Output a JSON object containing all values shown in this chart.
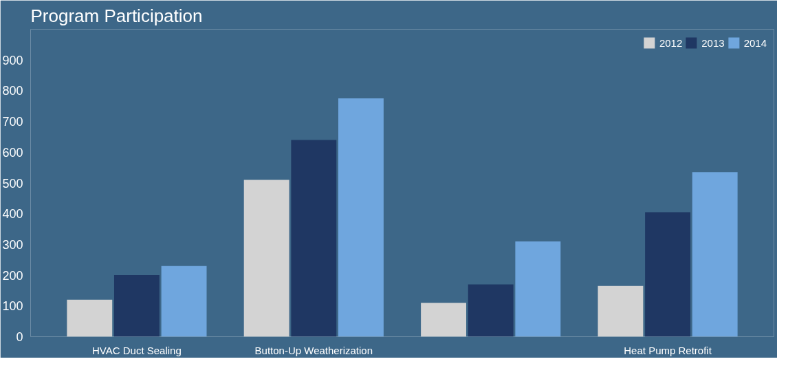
{
  "chart_data": {
    "type": "bar",
    "title": "Program Participation",
    "categories": [
      "HVAC Duct Sealing",
      "Button-Up Weatherization",
      null,
      "Heat Pump Retrofit"
    ],
    "series": [
      {
        "name": "2012",
        "color": "#d3d3d3",
        "values": [
          120,
          510,
          110,
          165
        ]
      },
      {
        "name": "2013",
        "color": "#1f3763",
        "values": [
          200,
          640,
          170,
          405
        ]
      },
      {
        "name": "2014",
        "color": "#6fa6de",
        "values": [
          230,
          775,
          310,
          535
        ]
      }
    ],
    "ylim": [
      0,
      1000
    ],
    "yticks": [
      0,
      100,
      200,
      300,
      400,
      500,
      600,
      700,
      800,
      900
    ],
    "grid": false,
    "legend": "top right"
  }
}
